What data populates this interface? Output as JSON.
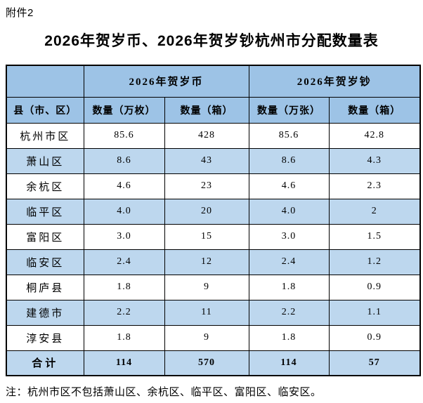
{
  "page": {
    "attachment_label": "附件2",
    "title": "2026年贺岁币、2026年贺岁钞杭州市分配数量表",
    "footnote": "注：杭州市区不包括萧山区、余杭区、临平区、富阳区、临安区。"
  },
  "table": {
    "corner_label": "",
    "group_headers": [
      "2026年贺岁币",
      "2026年贺岁钞"
    ],
    "column_headers": [
      "县（市、区）",
      "数量（万枚）",
      "数量（箱）",
      "数量（万张）",
      "数量（箱）"
    ],
    "rows": [
      {
        "region": "杭州市区",
        "values": [
          "85.6",
          "428",
          "85.6",
          "42.8"
        ]
      },
      {
        "region": "萧山区",
        "values": [
          "8.6",
          "43",
          "8.6",
          "4.3"
        ]
      },
      {
        "region": "余杭区",
        "values": [
          "4.6",
          "23",
          "4.6",
          "2.3"
        ]
      },
      {
        "region": "临平区",
        "values": [
          "4.0",
          "20",
          "4.0",
          "2"
        ]
      },
      {
        "region": "富阳区",
        "values": [
          "3.0",
          "15",
          "3.0",
          "1.5"
        ]
      },
      {
        "region": "临安区",
        "values": [
          "2.4",
          "12",
          "2.4",
          "1.2"
        ]
      },
      {
        "region": "桐庐县",
        "values": [
          "1.8",
          "9",
          "1.8",
          "0.9"
        ]
      },
      {
        "region": "建德市",
        "values": [
          "2.2",
          "11",
          "2.2",
          "1.1"
        ]
      },
      {
        "region": "淳安县",
        "values": [
          "1.8",
          "9",
          "1.8",
          "0.9"
        ]
      }
    ],
    "total_row": {
      "region": "合计",
      "values": [
        "114",
        "570",
        "114",
        "57"
      ]
    }
  },
  "colors": {
    "header_blue": "#9DC3E6",
    "alt_row_blue": "#BDD7EE",
    "border_black": "#000000",
    "page_background": "#FFFFFF"
  }
}
